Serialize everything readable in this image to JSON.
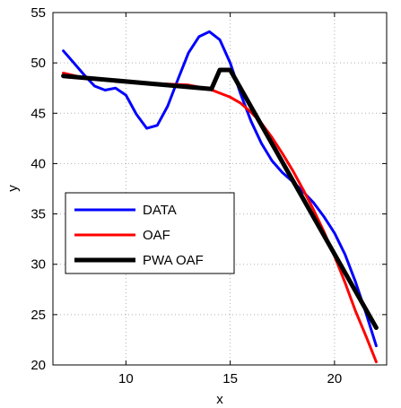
{
  "chart_data": {
    "type": "line",
    "title": "",
    "xlabel": "x",
    "ylabel": "y",
    "xlim": [
      6.5,
      22.5
    ],
    "ylim": [
      20,
      55
    ],
    "xticks": [
      10,
      15,
      20
    ],
    "yticks": [
      20,
      25,
      30,
      35,
      40,
      45,
      50,
      55
    ],
    "grid": true,
    "legend_position": "middle-left",
    "series": [
      {
        "name": "DATA",
        "color": "#0000ff",
        "line_width": 3,
        "x": [
          7,
          7.5,
          8,
          8.5,
          9,
          9.5,
          10,
          10.5,
          11,
          11.5,
          12,
          12.5,
          13,
          13.5,
          14,
          14.5,
          15,
          15.5,
          16,
          16.5,
          17,
          17.5,
          18,
          18.5,
          19,
          19.5,
          20,
          20.5,
          21,
          21.5,
          22
        ],
        "y": [
          51.2,
          50.0,
          48.8,
          47.7,
          47.3,
          47.5,
          46.8,
          44.9,
          43.5,
          43.8,
          45.7,
          48.4,
          51.0,
          52.6,
          53.1,
          52.3,
          50.0,
          46.9,
          44.2,
          42.0,
          40.3,
          39.1,
          38.2,
          37.2,
          36.1,
          34.7,
          33.1,
          31.0,
          28.3,
          25.2,
          21.9
        ]
      },
      {
        "name": "OAF",
        "color": "#ff0000",
        "line_width": 3,
        "x": [
          7,
          8,
          9,
          10,
          11,
          12,
          13,
          14,
          15,
          15.5,
          16,
          16.5,
          17,
          17.5,
          18,
          18.5,
          19,
          19.5,
          20,
          20.5,
          21,
          21.5,
          22
        ],
        "y": [
          49.0,
          48.5,
          48.3,
          48.1,
          48.0,
          47.9,
          47.8,
          47.4,
          46.6,
          46.0,
          45.1,
          44.0,
          42.6,
          41.0,
          39.3,
          37.4,
          35.4,
          33.2,
          30.8,
          28.2,
          25.4,
          22.9,
          20.3
        ]
      },
      {
        "name": "PWA OAF",
        "color": "#000000",
        "line_width": 5,
        "x": [
          7,
          14.1,
          14.5,
          15,
          22
        ],
        "y": [
          48.7,
          47.4,
          49.3,
          49.3,
          23.7
        ]
      }
    ]
  }
}
